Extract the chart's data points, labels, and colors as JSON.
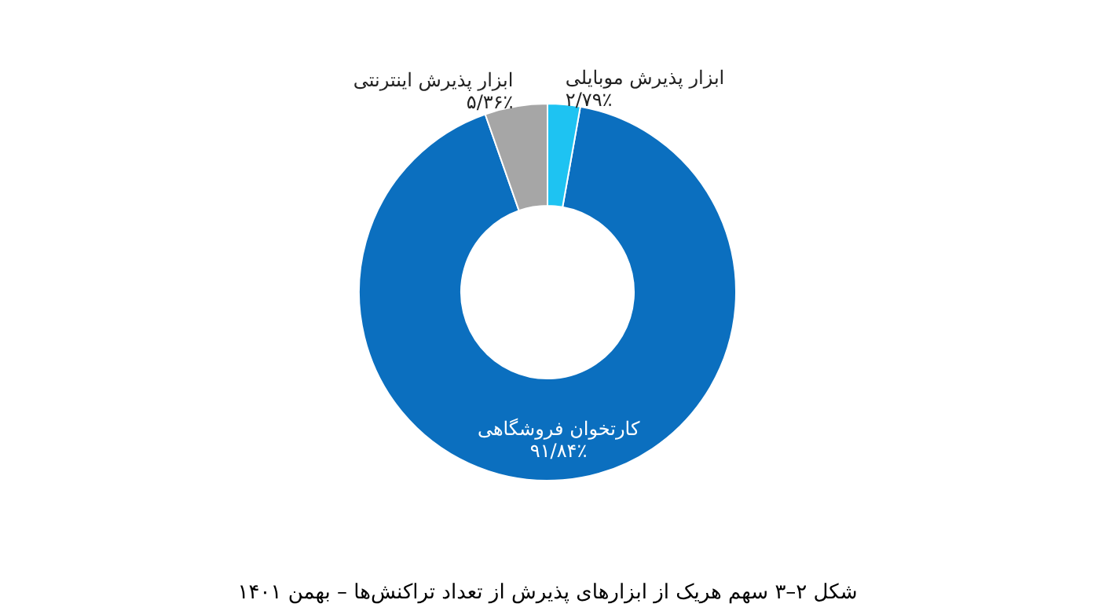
{
  "chart_data": {
    "type": "donut",
    "categories": [
      "کارتخوان فروشگاهی",
      "ابزار پذیرش اینترنتی",
      "ابزار پذیرش موبایلی"
    ],
    "values": [
      91.84,
      5.36,
      2.79
    ],
    "value_labels": [
      "۹۱/۸۴٪",
      "۵/۳۶٪",
      "۲/۷۹٪"
    ],
    "colors": [
      "#0b6fbf",
      "#a6a6a6",
      "#1ec3f2"
    ],
    "annotations": [
      "شکل ۲–۳ سهم هریک از ابزارهای پذیرش از تعداد تراکنش‌ها – بهمن ۱۴۰۱"
    ]
  }
}
